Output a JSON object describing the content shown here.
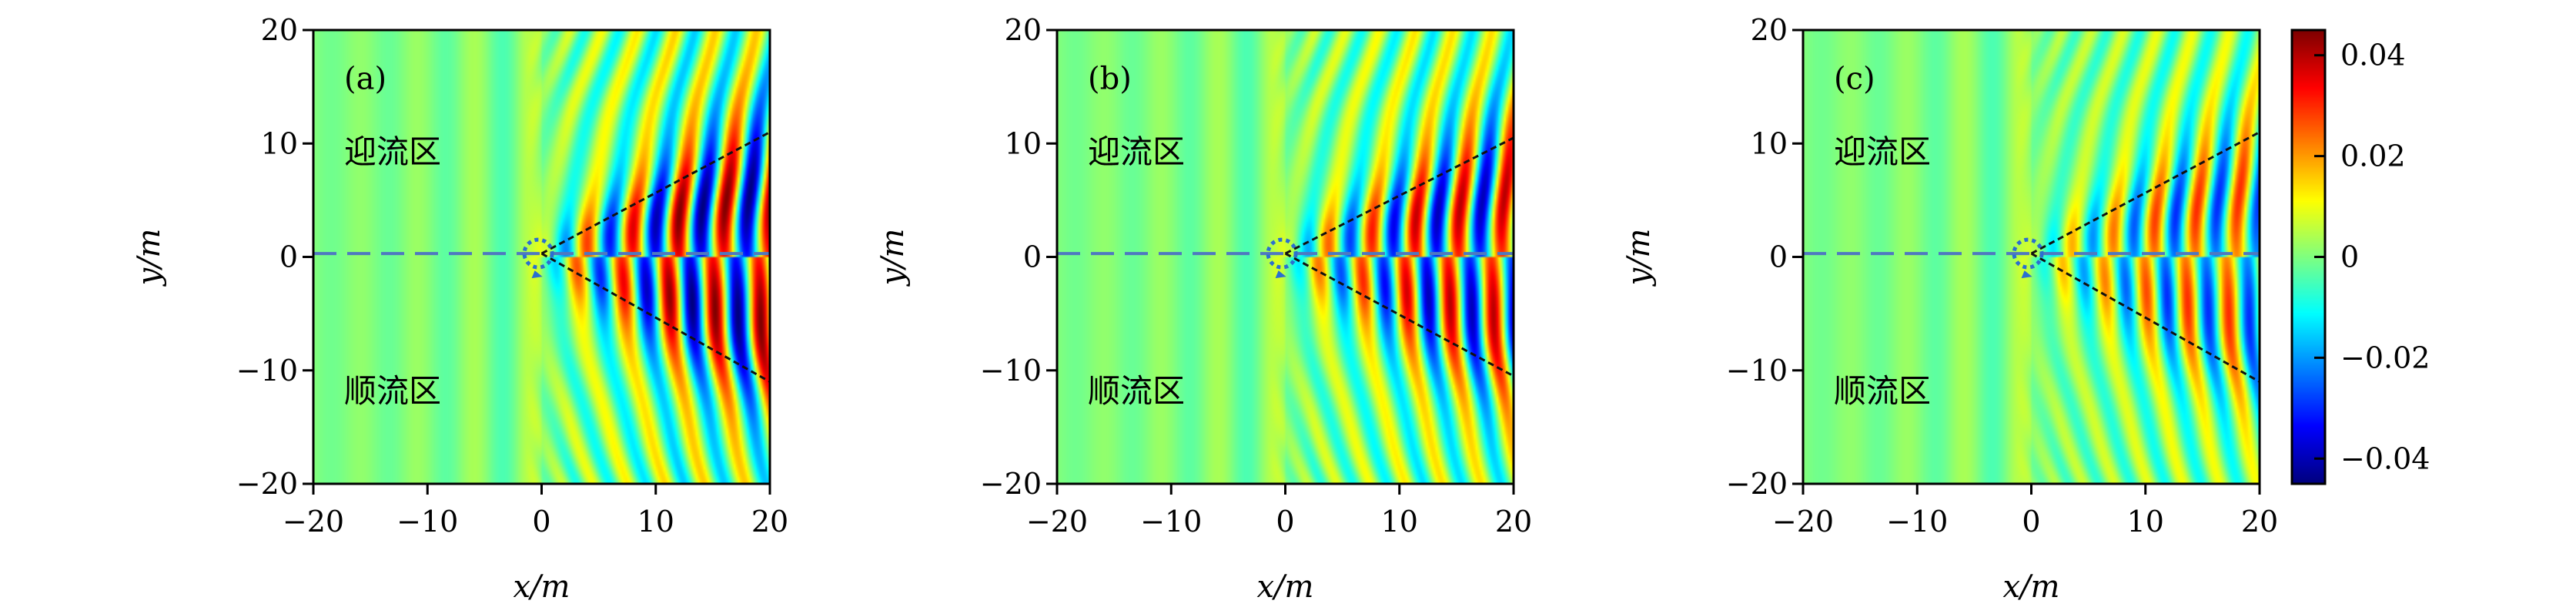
{
  "chart_data": [
    {
      "type": "heatmap",
      "panel_label": "(a)",
      "xlabel": "x/m",
      "ylabel": "y/m",
      "xlim": [
        -20,
        20
      ],
      "ylim": [
        -20,
        20
      ],
      "xticks": [
        "−20",
        "−10",
        "0",
        "10",
        "20"
      ],
      "yticks": [
        "20",
        "10",
        "0",
        "−10",
        "−20"
      ],
      "annotations": {
        "upper": "迎流区",
        "lower": "顺流区"
      },
      "wedge_end_y": 11.0,
      "amplitude": 0.045,
      "wavelength_m": 4.0
    },
    {
      "type": "heatmap",
      "panel_label": "(b)",
      "xlabel": "x/m",
      "ylabel": "y/m",
      "xlim": [
        -20,
        20
      ],
      "ylim": [
        -20,
        20
      ],
      "xticks": [
        "−20",
        "−10",
        "0",
        "10",
        "20"
      ],
      "yticks": [
        "20",
        "10",
        "0",
        "−10",
        "−20"
      ],
      "annotations": {
        "upper": "迎流区",
        "lower": "顺流区"
      },
      "wedge_end_y": 10.5,
      "amplitude": 0.04,
      "wavelength_m": 3.8
    },
    {
      "type": "heatmap",
      "panel_label": "(c)",
      "xlabel": "x/m",
      "ylabel": "y/m",
      "xlim": [
        -20,
        20
      ],
      "ylim": [
        -20,
        20
      ],
      "xticks": [
        "−20",
        "−10",
        "0",
        "10",
        "20"
      ],
      "yticks": [
        "20",
        "10",
        "0",
        "−10",
        "−20"
      ],
      "annotations": {
        "upper": "迎流区",
        "lower": "顺流区"
      },
      "wedge_end_y": 11.0,
      "amplitude": 0.03,
      "wavelength_m": 3.6
    }
  ],
  "colorbar": {
    "colormap": "jet",
    "range": [
      -0.045,
      0.045
    ],
    "ticks": [
      0.04,
      0.02,
      0,
      -0.02,
      -0.04
    ],
    "tick_labels": [
      "0.04",
      "0.02",
      "0",
      "−0.02",
      "−0.04"
    ]
  },
  "colors": {
    "centerline": "#4f78c0",
    "wedge": "#111111",
    "source": "#2a6fd0"
  }
}
